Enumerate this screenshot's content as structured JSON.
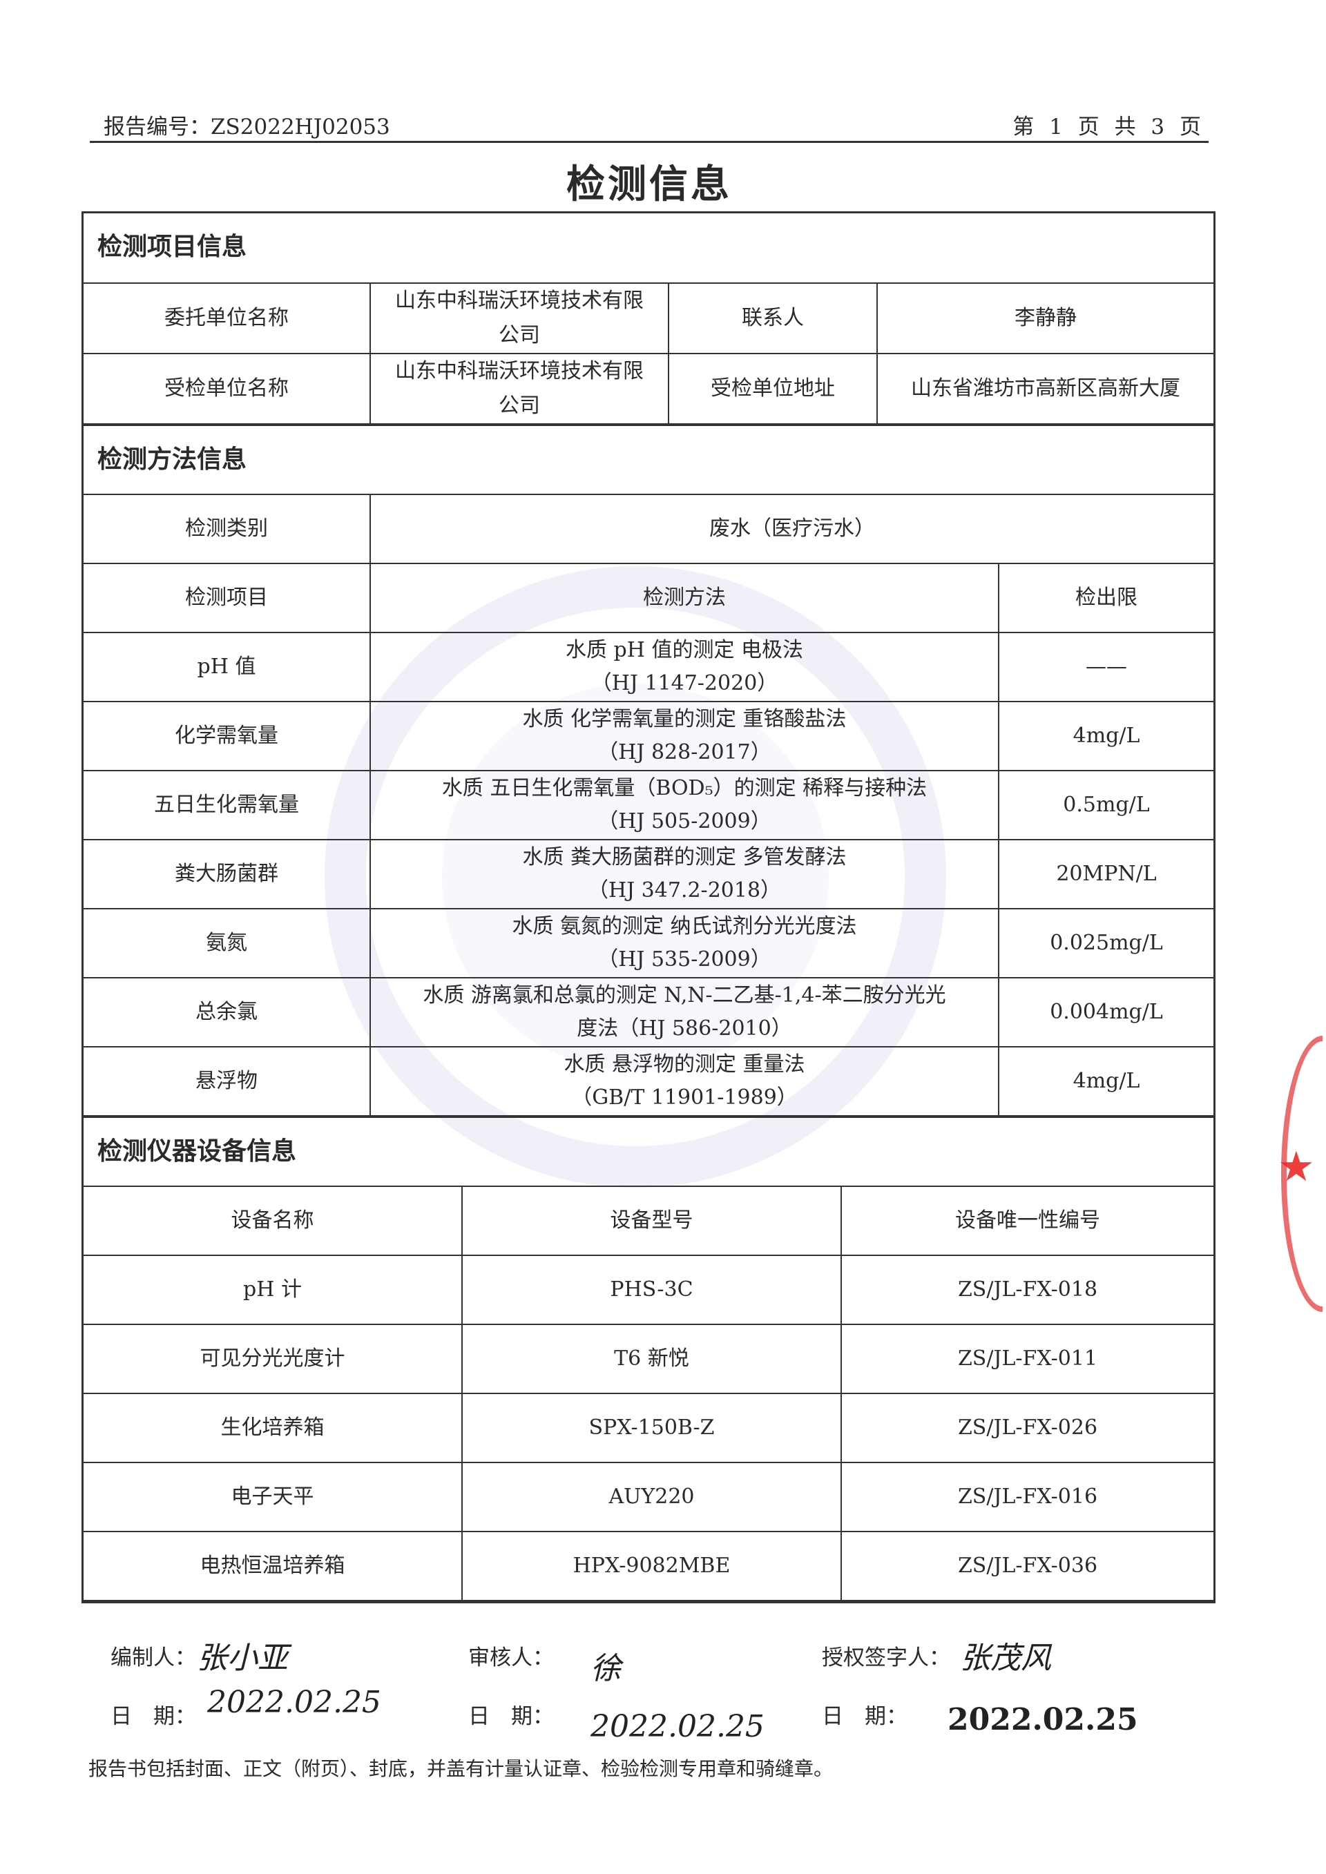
{
  "header": {
    "report_no": "报告编号：ZS2022HJ02053",
    "page": "第 1 页 共 3 页"
  },
  "title": "检测信息",
  "project": {
    "section": "检测项目信息",
    "client_label": "委托单位名称",
    "client": "山东中科瑞沃环境技术有限公司",
    "contact_label": "联系人",
    "contact": "李静静",
    "inspected_label": "受检单位名称",
    "inspected": "山东中科瑞沃环境技术有限公司",
    "address_label": "受检单位地址",
    "address": "山东省潍坊市高新区高新大厦"
  },
  "method": {
    "section": "检测方法信息",
    "category_label": "检测类别",
    "category": "废水（医疗污水）",
    "headers": [
      "检测项目",
      "检测方法",
      "检出限"
    ],
    "rows": [
      {
        "item": "pH 值",
        "method": "水质 pH 值的测定 电极法",
        "std": "（HJ 1147-2020）",
        "limit": "——"
      },
      {
        "item": "化学需氧量",
        "method": "水质 化学需氧量的测定 重铬酸盐法",
        "std": "（HJ 828-2017）",
        "limit": "4mg/L"
      },
      {
        "item": "五日生化需氧量",
        "method": "水质 五日生化需氧量（BOD₅）的测定 稀释与接种法",
        "std": "（HJ 505-2009）",
        "limit": "0.5mg/L"
      },
      {
        "item": "粪大肠菌群",
        "method": "水质 粪大肠菌群的测定 多管发酵法",
        "std": "（HJ 347.2-2018）",
        "limit": "20MPN/L"
      },
      {
        "item": "氨氮",
        "method": "水质 氨氮的测定 纳氏试剂分光光度法",
        "std": "（HJ 535-2009）",
        "limit": "0.025mg/L"
      },
      {
        "item": "总余氯",
        "method": "水质 游离氯和总氯的测定 N,N-二乙基-1,4-苯二胺分光光",
        "std": "度法（HJ 586-2010）",
        "limit": "0.004mg/L"
      },
      {
        "item": "悬浮物",
        "method": "水质 悬浮物的测定 重量法",
        "std": "（GB/T 11901-1989）",
        "limit": "4mg/L"
      }
    ]
  },
  "equipment": {
    "section": "检测仪器设备信息",
    "headers": [
      "设备名称",
      "设备型号",
      "设备唯一性编号"
    ],
    "rows": [
      {
        "name": "pH 计",
        "model": "PHS-3C",
        "id": "ZS/JL-FX-018"
      },
      {
        "name": "可见分光光度计",
        "model": "T6 新悦",
        "id": "ZS/JL-FX-011"
      },
      {
        "name": "生化培养箱",
        "model": "SPX-150B-Z",
        "id": "ZS/JL-FX-026"
      },
      {
        "name": "电子天平",
        "model": "AUY220",
        "id": "ZS/JL-FX-016"
      },
      {
        "name": "电热恒温培养箱",
        "model": "HPX-9082MBE",
        "id": "ZS/JL-FX-036"
      }
    ]
  },
  "signatures": {
    "compiler_label": "编制人：",
    "reviewer_label": "审核人：",
    "approver_label": "授权签字人：",
    "date_label": "日　期：",
    "compiler_date": "2022.02.25",
    "reviewer_date": "2022.02.25",
    "approver_date": "2022.02.25"
  },
  "footnote": "报告书包括封面、正文（附页）、封底，并盖有计量认证章、检验检测专用章和骑缝章。"
}
